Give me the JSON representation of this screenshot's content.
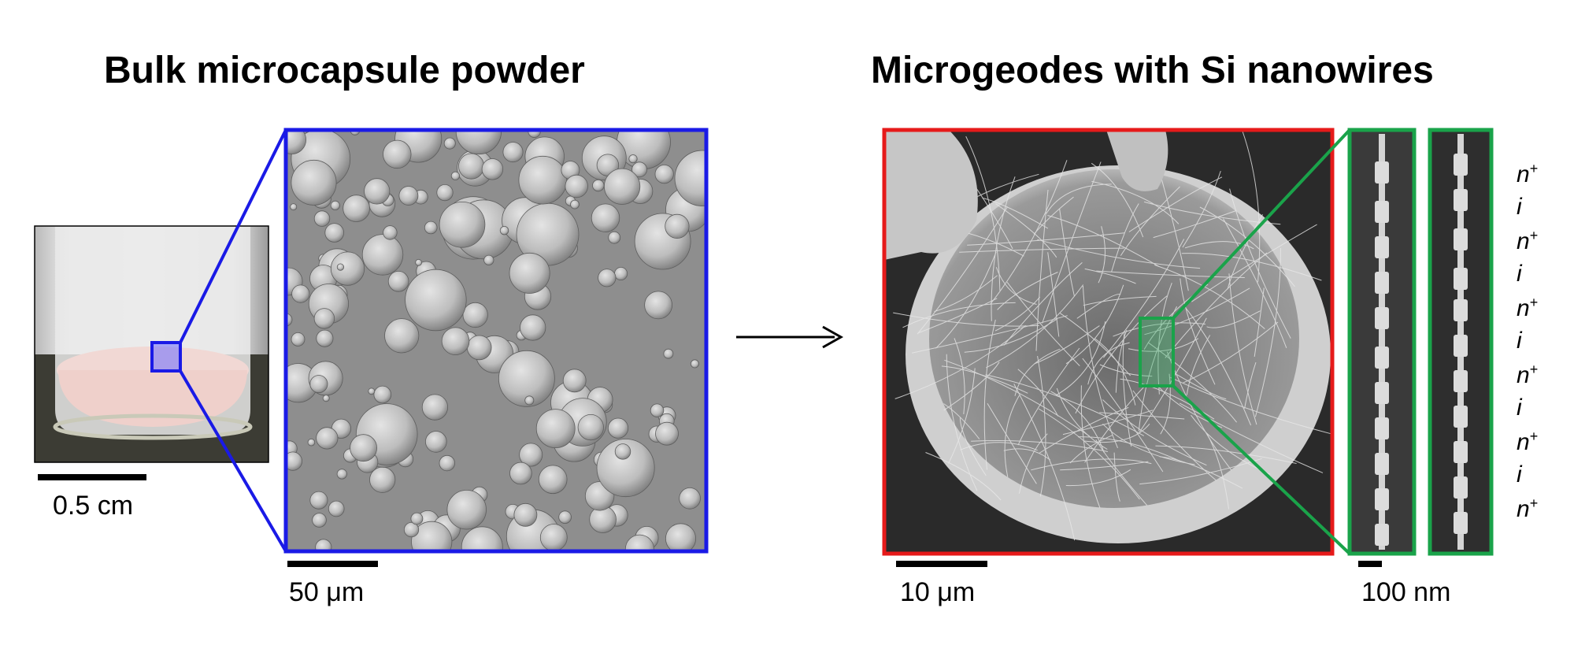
{
  "titles": {
    "left": "Bulk microcapsule powder",
    "right": "Microgeodes with Si nanowires"
  },
  "scale_bars": {
    "vial": "0.5 cm",
    "powder_sem": "50 μm",
    "geode_sem": "10 μm",
    "nanowire_sem": "100 nm"
  },
  "doping_sequence": [
    {
      "base": "n",
      "sup": "+"
    },
    {
      "base": "i",
      "sup": ""
    },
    {
      "base": "n",
      "sup": "+"
    },
    {
      "base": "i",
      "sup": ""
    },
    {
      "base": "n",
      "sup": "+"
    },
    {
      "base": "i",
      "sup": ""
    },
    {
      "base": "n",
      "sup": "+"
    },
    {
      "base": "i",
      "sup": ""
    },
    {
      "base": "n",
      "sup": "+"
    },
    {
      "base": "i",
      "sup": ""
    },
    {
      "base": "n",
      "sup": "+"
    }
  ],
  "colors": {
    "powder_frame": "#1a1ae6",
    "geode_frame": "#e61a1a",
    "nanowire_frame": "#1aa34a"
  }
}
